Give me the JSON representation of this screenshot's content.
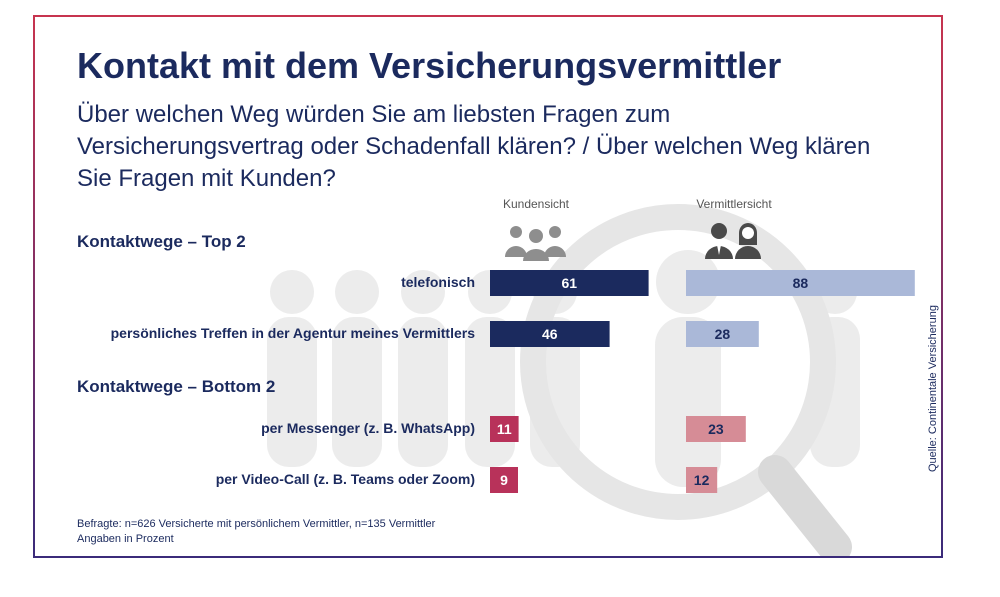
{
  "title": "Kontakt mit dem Versicherungsvermittler",
  "subtitle": "Über welchen Weg würden Sie am liebsten Fragen zum Versicherungsvertrag oder Schadenfall klären? / Über welchen Weg klären Sie Fragen mit Kunden?",
  "column_headers": {
    "left": "Kundensicht",
    "right": "Vermittlersicht"
  },
  "icons": {
    "left": "group-of-people-icon",
    "right": "businessman-businesswoman-icon"
  },
  "sections": {
    "top": "Kontaktwege – Top 2",
    "bottom": "Kontaktwege – Bottom 2"
  },
  "footnote": {
    "line1": "Befragte: n=626 Versicherte mit persönlichem Vermittler, n=135 Vermittler",
    "line2": "Angaben in Prozent"
  },
  "source": "Quelle: Continentale Versicherung",
  "colors": {
    "title": "#1b2a5e",
    "kunden_top": "#1b2a5e",
    "vermittler_top": "#aab8d8",
    "kunden_bottom": "#b8325a",
    "vermittler_bottom": "#d68c96"
  },
  "chart_data": {
    "type": "bar",
    "orientation": "horizontal",
    "categories": [
      "telefonisch",
      "persönliches Treffen in der Agentur meines Vermittlers",
      "per Messenger (z. B. WhatsApp)",
      "per Video-Call (z. B. Teams oder Zoom)"
    ],
    "groups": [
      "Kontaktwege – Top 2",
      "Kontaktwege – Top 2",
      "Kontaktwege – Bottom 2",
      "Kontaktwege – Bottom 2"
    ],
    "series": [
      {
        "name": "Kundensicht",
        "values": [
          61,
          46,
          11,
          9
        ]
      },
      {
        "name": "Vermittlersicht",
        "values": [
          88,
          28,
          23,
          12
        ]
      }
    ],
    "unit": "%",
    "xlim": [
      0,
      100
    ]
  }
}
